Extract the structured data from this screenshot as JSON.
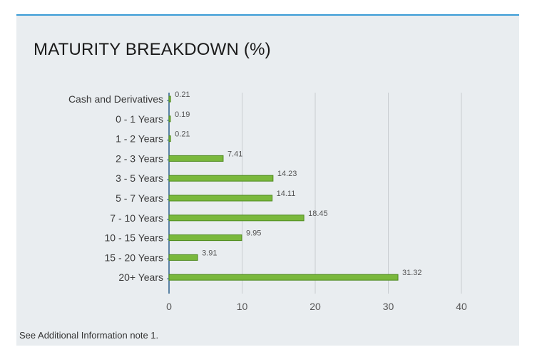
{
  "panel": {
    "title": "MATURITY BREAKDOWN (%)",
    "footnote": "See Additional Information note 1.",
    "accent_color": "#3a9bd6"
  },
  "chart_data": {
    "type": "bar",
    "orientation": "horizontal",
    "title": "MATURITY BREAKDOWN (%)",
    "categories": [
      "Cash and Derivatives",
      "0 - 1 Years",
      "1 - 2 Years",
      "2 - 3 Years",
      "3 - 5 Years",
      "5 - 7 Years",
      "7 - 10 Years",
      "10 - 15 Years",
      "15 - 20 Years",
      "20+ Years"
    ],
    "values": [
      0.21,
      0.19,
      0.21,
      7.41,
      14.23,
      14.11,
      18.45,
      9.95,
      3.91,
      31.32
    ],
    "value_labels": [
      "0.21",
      "0.19",
      "0.21",
      "7.41",
      "14.23",
      "14.11",
      "18.45",
      "9.95",
      "3.91",
      "31.32"
    ],
    "xlim": [
      0,
      40
    ],
    "xticks": [
      0,
      10,
      20,
      30,
      40
    ],
    "xlabel": "",
    "ylabel": "",
    "grid": "vertical",
    "legend": "none",
    "bar_color": "#7ab83c",
    "bar_border_color": "#4e8a1e"
  }
}
